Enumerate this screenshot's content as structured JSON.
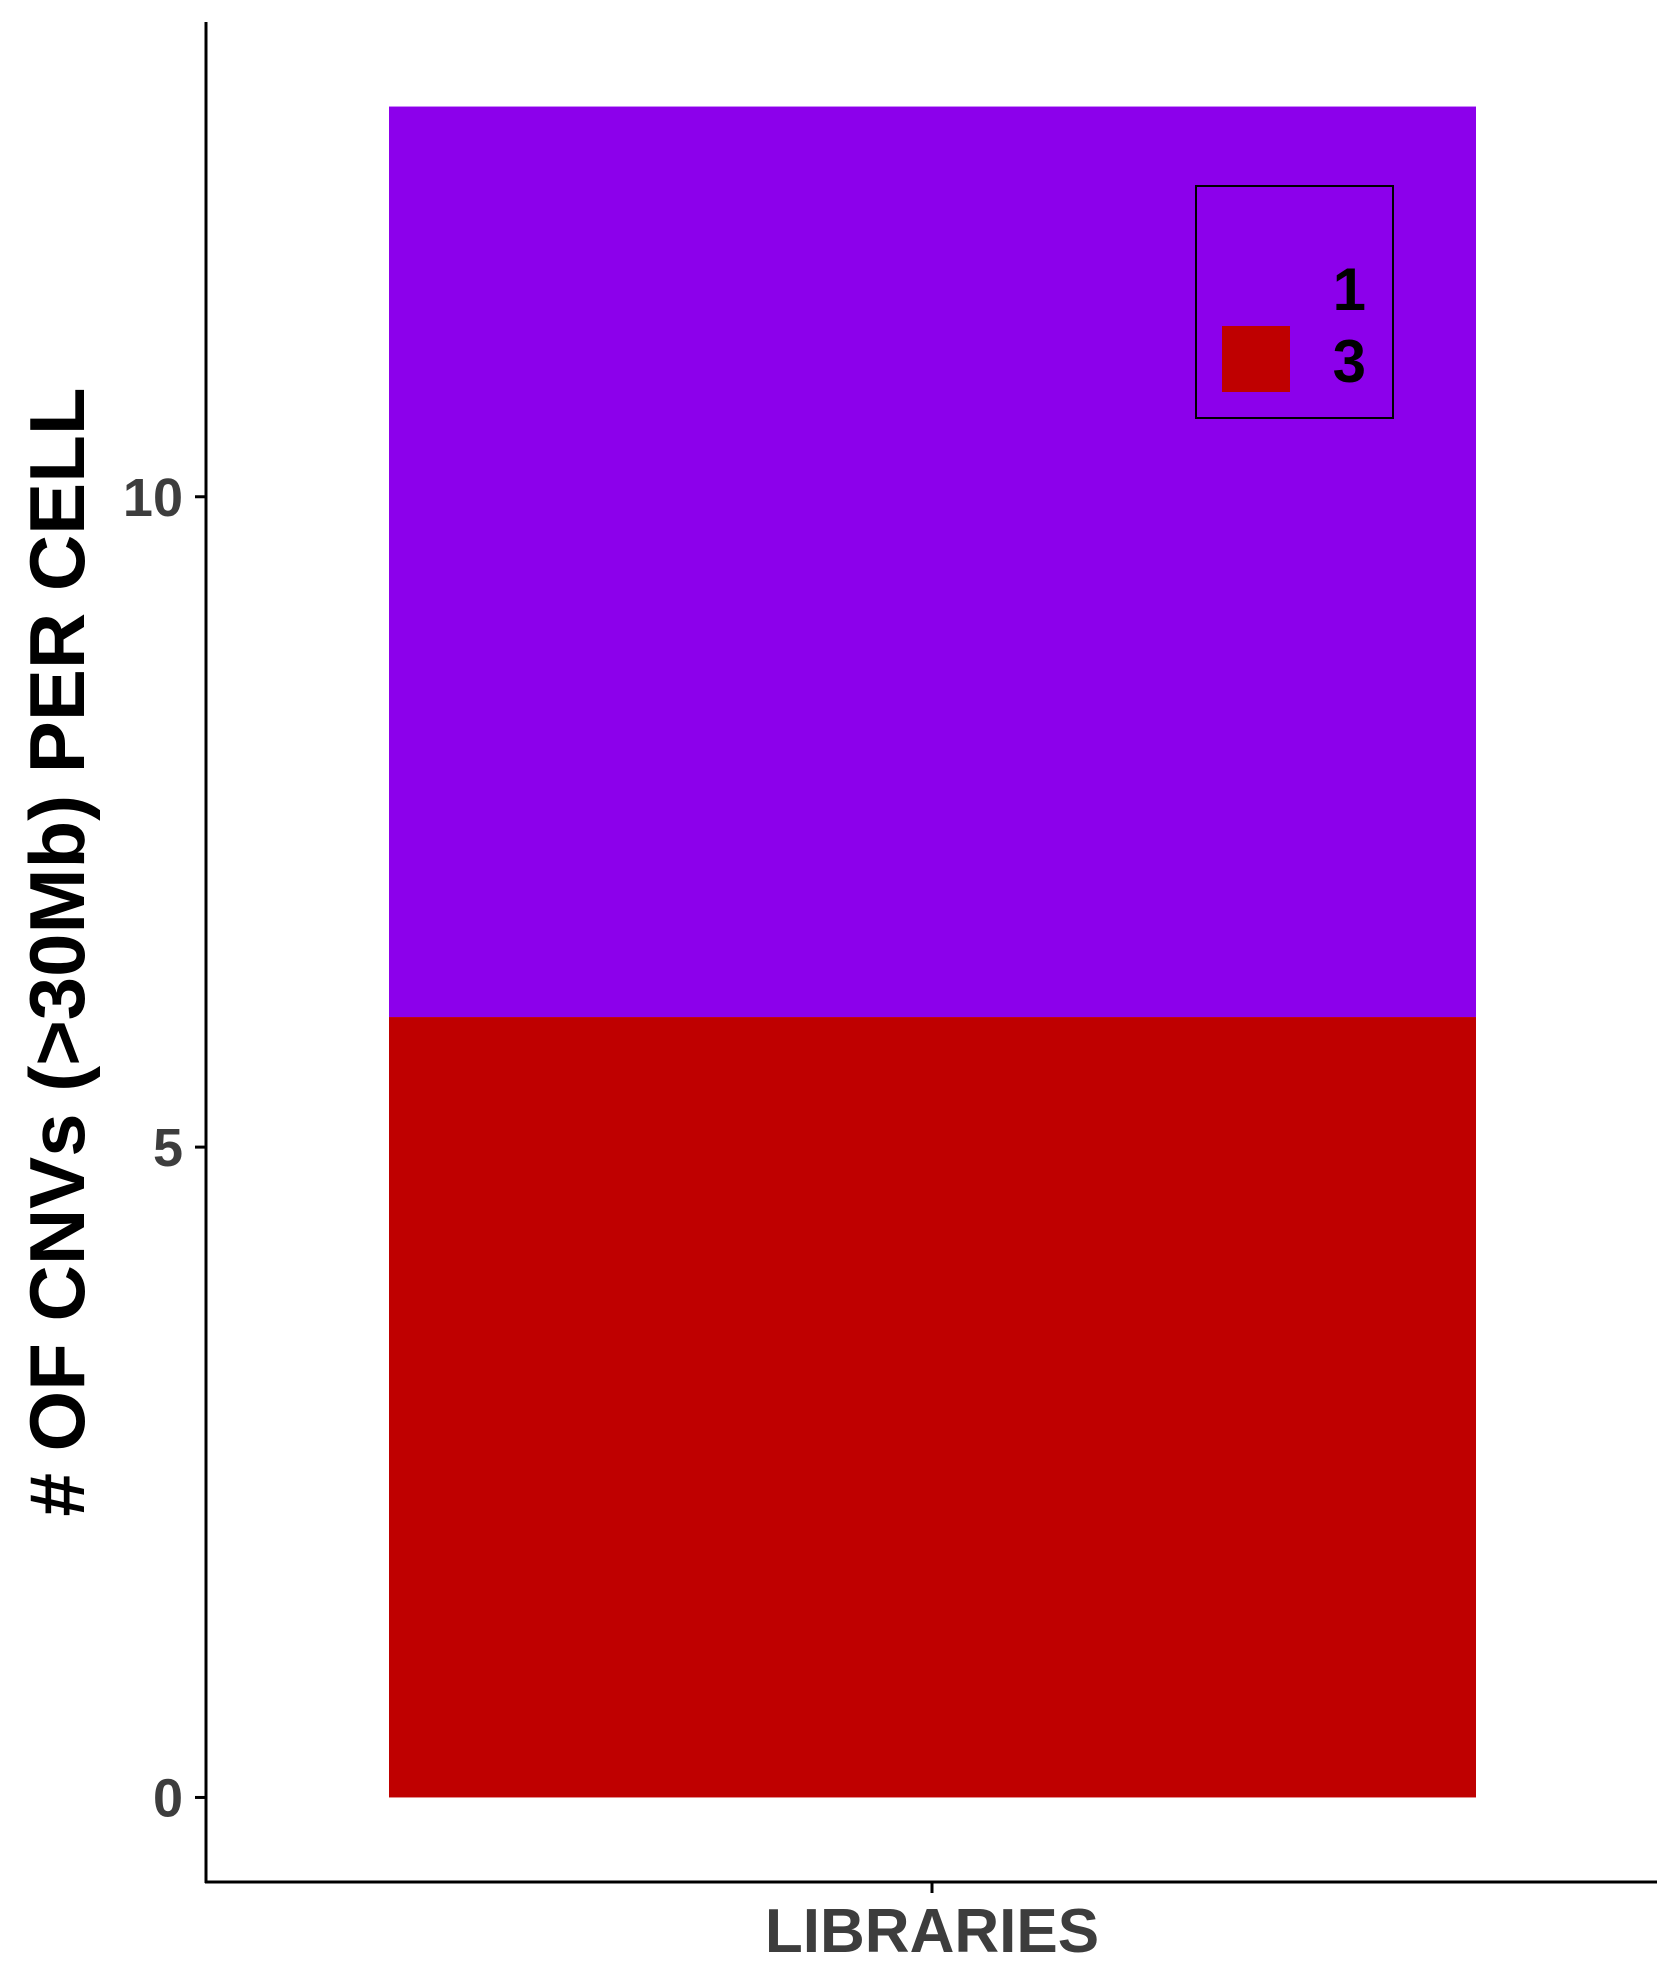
{
  "chart_data": {
    "type": "bar",
    "stacked": true,
    "categories": [
      "LIBRARIES"
    ],
    "series": [
      {
        "name": "3",
        "values": [
          6
        ],
        "color": "#bf0000"
      },
      {
        "name": "1",
        "values": [
          7
        ],
        "color": "#8c00eb"
      }
    ],
    "xlabel": "LIBRARIES",
    "ylabel": "# OF CNVs (>30Mb) PER CELL",
    "ylim": [
      -0.65,
      13.65
    ],
    "yticks": [
      0,
      5,
      10
    ],
    "grid": false,
    "legend": {
      "placement": "top-right",
      "entries": [
        {
          "label": "1",
          "color": "#8c00eb",
          "swatch_visible": false
        },
        {
          "label": "3",
          "color": "#bf0000",
          "swatch_visible": true
        }
      ]
    }
  }
}
